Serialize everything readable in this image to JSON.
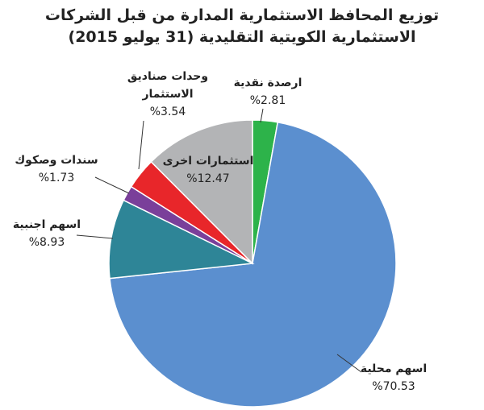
{
  "chart_data": {
    "type": "pie",
    "title": "توزيع المحافظ الاستثمارية المدارة من قبل الشركات الاستثمارية الكويتية التقليدية (31 يوليو 2015)",
    "categories": [
      "ارصدة نقدية",
      "اسهم محلية",
      "اسهم اجنبية",
      "سندات وصكوك",
      "وحدات صناديق الاستثمار",
      "استثمارات اخرى"
    ],
    "values": [
      2.81,
      70.53,
      8.93,
      1.73,
      3.54,
      12.47
    ],
    "value_labels": [
      "%2.81",
      "%70.53",
      "%8.93",
      "%1.73",
      "%3.54",
      "%12.47"
    ],
    "colors": [
      "#2db34a",
      "#5b8fcf",
      "#2e8597",
      "#7a3f9a",
      "#e8262a",
      "#b3b4b6"
    ]
  }
}
